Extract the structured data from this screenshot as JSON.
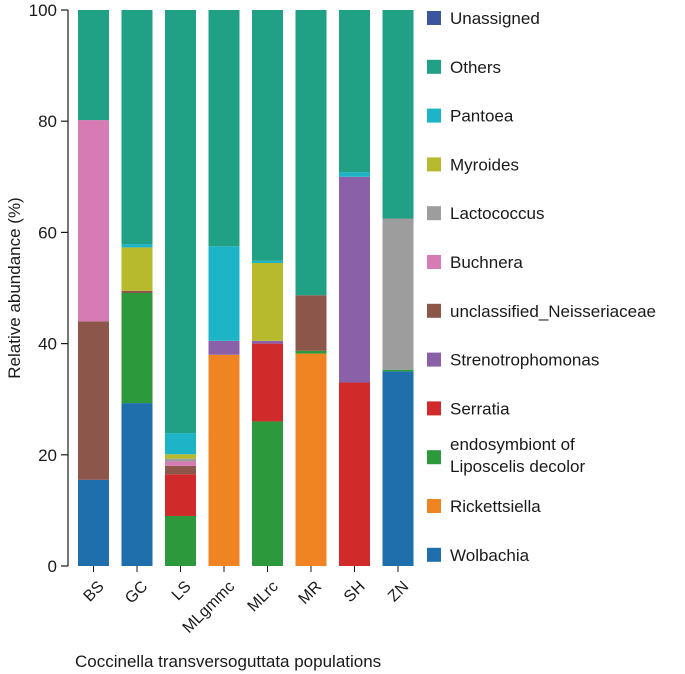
{
  "chart_data": {
    "type": "bar",
    "stacked": true,
    "title": "",
    "xlabel": "Coccinella transversoguttata populations",
    "ylabel": "Relative abundance (%)",
    "ylim": [
      0,
      100
    ],
    "yticks": [
      0,
      20,
      40,
      60,
      80,
      100
    ],
    "categories": [
      "BS",
      "GC",
      "LS",
      "MLgmmc",
      "MLrc",
      "MR",
      "SH",
      "ZN"
    ],
    "legend_position": "right",
    "series": [
      {
        "name": "Wolbachia",
        "color": "#1f6fad",
        "values": [
          15.5,
          29.3,
          0,
          0,
          0,
          0,
          0,
          35.0
        ]
      },
      {
        "name": "Rickettsiella",
        "color": "#f08423",
        "values": [
          0,
          0,
          0,
          38.0,
          0,
          38.2,
          0,
          0
        ]
      },
      {
        "name": "endosymbiont of Liposcelis decolor",
        "color": "#2c9a3c",
        "values": [
          0,
          19.8,
          9.0,
          0,
          26.0,
          0.5,
          0,
          0.3
        ]
      },
      {
        "name": "Serratia",
        "color": "#d02a2a",
        "values": [
          0,
          0,
          7.5,
          0,
          14.0,
          0,
          33.0,
          0
        ]
      },
      {
        "name": "Strenotrophomonas",
        "color": "#8a60a8",
        "values": [
          0,
          0,
          0,
          2.5,
          0.5,
          0,
          37.0,
          0
        ]
      },
      {
        "name": "unclassified_Neisseriaceae",
        "color": "#8c564b",
        "values": [
          28.5,
          0.4,
          1.5,
          0,
          0,
          10.0,
          0,
          0
        ]
      },
      {
        "name": "Buchnera",
        "color": "#d77bb5",
        "values": [
          36.2,
          0,
          0.8,
          0,
          0,
          0,
          0,
          0
        ]
      },
      {
        "name": "Lactococcus",
        "color": "#9d9d9d",
        "values": [
          0,
          0,
          0.5,
          0,
          0,
          0,
          0,
          27.2
        ]
      },
      {
        "name": "Myroides",
        "color": "#b8ba2e",
        "values": [
          0,
          7.8,
          0.8,
          0,
          14.0,
          0,
          0,
          0
        ]
      },
      {
        "name": "Pantoea",
        "color": "#1eb4c8",
        "values": [
          0,
          0.6,
          3.8,
          17.0,
          0.4,
          0,
          0.8,
          0
        ]
      },
      {
        "name": "Others",
        "color": "#20a084",
        "values": [
          19.8,
          42.1,
          76.1,
          42.5,
          45.1,
          51.3,
          29.2,
          37.5
        ]
      },
      {
        "name": "Unassigned",
        "color": "#3b569e",
        "values": [
          0,
          0,
          0,
          0,
          0,
          0,
          0,
          0
        ]
      }
    ],
    "legend_order": [
      "Unassigned",
      "Others",
      "Pantoea",
      "Myroides",
      "Lactococcus",
      "Buchnera",
      "unclassified_Neisseriaceae",
      "Strenotrophomonas",
      "Serratia",
      "endosymbiont of Liposcelis decolor",
      "Rickettsiella",
      "Wolbachia"
    ],
    "legend_lines": {
      "endosymbiont of Liposcelis decolor": [
        "endosymbiont of",
        "Liposcelis decolor"
      ]
    }
  }
}
